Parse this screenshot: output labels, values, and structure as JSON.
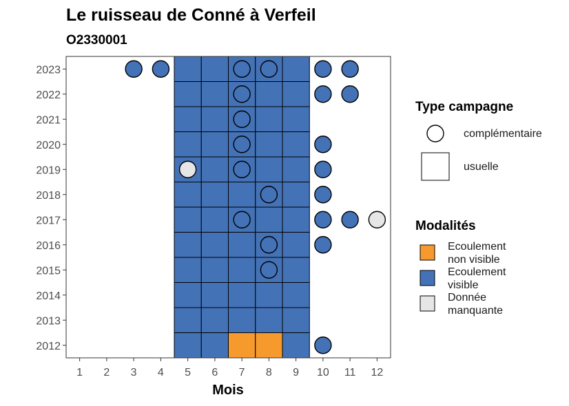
{
  "chart_data": {
    "type": "heatmap",
    "title": "Le ruisseau de Conné à Verfeil",
    "subtitle": "O2330001",
    "xlabel": "Mois",
    "ylabel": "",
    "x_ticks": [
      1,
      2,
      3,
      4,
      5,
      6,
      7,
      8,
      9,
      10,
      11,
      12
    ],
    "y_ticks": [
      2012,
      2013,
      2014,
      2015,
      2016,
      2017,
      2018,
      2019,
      2020,
      2021,
      2022,
      2023
    ],
    "xlim": [
      0.5,
      12.5
    ],
    "ylim": [
      2011.5,
      2023.5
    ],
    "grid": false,
    "modalites": [
      {
        "key": "nv",
        "label_lines": [
          "Ecoulement",
          "non visible"
        ],
        "color": "#F79A2E"
      },
      {
        "key": "v",
        "label_lines": [
          "Ecoulement",
          "visible"
        ],
        "color": "#4472B6"
      },
      {
        "key": "m",
        "label_lines": [
          "Donnée",
          "manquante"
        ],
        "color": "#E6E6E6"
      }
    ],
    "campagne_types": [
      {
        "key": "complementaire",
        "label": "complémentaire",
        "shape": "circle"
      },
      {
        "key": "usuelle",
        "label": "usuelle",
        "shape": "square"
      }
    ],
    "legend": {
      "position": "right",
      "type_title": "Type campagne",
      "modalite_title": "Modalités"
    },
    "observations": [
      {
        "year": 2012,
        "month": 5,
        "type": "usuelle",
        "modalite": "v"
      },
      {
        "year": 2012,
        "month": 6,
        "type": "usuelle",
        "modalite": "v"
      },
      {
        "year": 2012,
        "month": 7,
        "type": "usuelle",
        "modalite": "nv"
      },
      {
        "year": 2012,
        "month": 8,
        "type": "usuelle",
        "modalite": "nv"
      },
      {
        "year": 2012,
        "month": 9,
        "type": "usuelle",
        "modalite": "v"
      },
      {
        "year": 2012,
        "month": 10,
        "type": "complementaire",
        "modalite": "v"
      },
      {
        "year": 2013,
        "month": 5,
        "type": "usuelle",
        "modalite": "v"
      },
      {
        "year": 2013,
        "month": 6,
        "type": "usuelle",
        "modalite": "v"
      },
      {
        "year": 2013,
        "month": 7,
        "type": "usuelle",
        "modalite": "v"
      },
      {
        "year": 2013,
        "month": 8,
        "type": "usuelle",
        "modalite": "v"
      },
      {
        "year": 2013,
        "month": 9,
        "type": "usuelle",
        "modalite": "v"
      },
      {
        "year": 2014,
        "month": 5,
        "type": "usuelle",
        "modalite": "v"
      },
      {
        "year": 2014,
        "month": 6,
        "type": "usuelle",
        "modalite": "v"
      },
      {
        "year": 2014,
        "month": 7,
        "type": "usuelle",
        "modalite": "v"
      },
      {
        "year": 2014,
        "month": 8,
        "type": "usuelle",
        "modalite": "v"
      },
      {
        "year": 2014,
        "month": 9,
        "type": "usuelle",
        "modalite": "v"
      },
      {
        "year": 2015,
        "month": 5,
        "type": "usuelle",
        "modalite": "v"
      },
      {
        "year": 2015,
        "month": 6,
        "type": "usuelle",
        "modalite": "v"
      },
      {
        "year": 2015,
        "month": 7,
        "type": "usuelle",
        "modalite": "v"
      },
      {
        "year": 2015,
        "month": 8,
        "type": "usuelle",
        "modalite": "v"
      },
      {
        "year": 2015,
        "month": 9,
        "type": "usuelle",
        "modalite": "v"
      },
      {
        "year": 2015,
        "month": 8,
        "type": "complementaire",
        "modalite": "v"
      },
      {
        "year": 2016,
        "month": 5,
        "type": "usuelle",
        "modalite": "v"
      },
      {
        "year": 2016,
        "month": 6,
        "type": "usuelle",
        "modalite": "v"
      },
      {
        "year": 2016,
        "month": 7,
        "type": "usuelle",
        "modalite": "v"
      },
      {
        "year": 2016,
        "month": 8,
        "type": "usuelle",
        "modalite": "v"
      },
      {
        "year": 2016,
        "month": 9,
        "type": "usuelle",
        "modalite": "v"
      },
      {
        "year": 2016,
        "month": 8,
        "type": "complementaire",
        "modalite": "v"
      },
      {
        "year": 2016,
        "month": 10,
        "type": "complementaire",
        "modalite": "v"
      },
      {
        "year": 2017,
        "month": 5,
        "type": "usuelle",
        "modalite": "v"
      },
      {
        "year": 2017,
        "month": 6,
        "type": "usuelle",
        "modalite": "v"
      },
      {
        "year": 2017,
        "month": 7,
        "type": "usuelle",
        "modalite": "v"
      },
      {
        "year": 2017,
        "month": 8,
        "type": "usuelle",
        "modalite": "v"
      },
      {
        "year": 2017,
        "month": 9,
        "type": "usuelle",
        "modalite": "v"
      },
      {
        "year": 2017,
        "month": 7,
        "type": "complementaire",
        "modalite": "v"
      },
      {
        "year": 2017,
        "month": 10,
        "type": "complementaire",
        "modalite": "v"
      },
      {
        "year": 2017,
        "month": 11,
        "type": "complementaire",
        "modalite": "v"
      },
      {
        "year": 2017,
        "month": 12,
        "type": "complementaire",
        "modalite": "m"
      },
      {
        "year": 2018,
        "month": 5,
        "type": "usuelle",
        "modalite": "v"
      },
      {
        "year": 2018,
        "month": 6,
        "type": "usuelle",
        "modalite": "v"
      },
      {
        "year": 2018,
        "month": 7,
        "type": "usuelle",
        "modalite": "v"
      },
      {
        "year": 2018,
        "month": 8,
        "type": "usuelle",
        "modalite": "v"
      },
      {
        "year": 2018,
        "month": 9,
        "type": "usuelle",
        "modalite": "v"
      },
      {
        "year": 2018,
        "month": 8,
        "type": "complementaire",
        "modalite": "v"
      },
      {
        "year": 2018,
        "month": 10,
        "type": "complementaire",
        "modalite": "v"
      },
      {
        "year": 2019,
        "month": 5,
        "type": "usuelle",
        "modalite": "v"
      },
      {
        "year": 2019,
        "month": 6,
        "type": "usuelle",
        "modalite": "v"
      },
      {
        "year": 2019,
        "month": 7,
        "type": "usuelle",
        "modalite": "v"
      },
      {
        "year": 2019,
        "month": 8,
        "type": "usuelle",
        "modalite": "v"
      },
      {
        "year": 2019,
        "month": 9,
        "type": "usuelle",
        "modalite": "v"
      },
      {
        "year": 2019,
        "month": 5,
        "type": "complementaire",
        "modalite": "m"
      },
      {
        "year": 2019,
        "month": 7,
        "type": "complementaire",
        "modalite": "v"
      },
      {
        "year": 2019,
        "month": 10,
        "type": "complementaire",
        "modalite": "v"
      },
      {
        "year": 2020,
        "month": 5,
        "type": "usuelle",
        "modalite": "v"
      },
      {
        "year": 2020,
        "month": 6,
        "type": "usuelle",
        "modalite": "v"
      },
      {
        "year": 2020,
        "month": 7,
        "type": "usuelle",
        "modalite": "v"
      },
      {
        "year": 2020,
        "month": 8,
        "type": "usuelle",
        "modalite": "v"
      },
      {
        "year": 2020,
        "month": 9,
        "type": "usuelle",
        "modalite": "v"
      },
      {
        "year": 2020,
        "month": 7,
        "type": "complementaire",
        "modalite": "v"
      },
      {
        "year": 2020,
        "month": 10,
        "type": "complementaire",
        "modalite": "v"
      },
      {
        "year": 2021,
        "month": 5,
        "type": "usuelle",
        "modalite": "v"
      },
      {
        "year": 2021,
        "month": 6,
        "type": "usuelle",
        "modalite": "v"
      },
      {
        "year": 2021,
        "month": 7,
        "type": "usuelle",
        "modalite": "v"
      },
      {
        "year": 2021,
        "month": 8,
        "type": "usuelle",
        "modalite": "v"
      },
      {
        "year": 2021,
        "month": 9,
        "type": "usuelle",
        "modalite": "v"
      },
      {
        "year": 2021,
        "month": 7,
        "type": "complementaire",
        "modalite": "v"
      },
      {
        "year": 2022,
        "month": 5,
        "type": "usuelle",
        "modalite": "v"
      },
      {
        "year": 2022,
        "month": 6,
        "type": "usuelle",
        "modalite": "v"
      },
      {
        "year": 2022,
        "month": 7,
        "type": "usuelle",
        "modalite": "v"
      },
      {
        "year": 2022,
        "month": 8,
        "type": "usuelle",
        "modalite": "v"
      },
      {
        "year": 2022,
        "month": 9,
        "type": "usuelle",
        "modalite": "v"
      },
      {
        "year": 2022,
        "month": 7,
        "type": "complementaire",
        "modalite": "v"
      },
      {
        "year": 2022,
        "month": 10,
        "type": "complementaire",
        "modalite": "v"
      },
      {
        "year": 2022,
        "month": 11,
        "type": "complementaire",
        "modalite": "v"
      },
      {
        "year": 2023,
        "month": 5,
        "type": "usuelle",
        "modalite": "v"
      },
      {
        "year": 2023,
        "month": 6,
        "type": "usuelle",
        "modalite": "v"
      },
      {
        "year": 2023,
        "month": 7,
        "type": "usuelle",
        "modalite": "v"
      },
      {
        "year": 2023,
        "month": 8,
        "type": "usuelle",
        "modalite": "v"
      },
      {
        "year": 2023,
        "month": 9,
        "type": "usuelle",
        "modalite": "v"
      },
      {
        "year": 2023,
        "month": 3,
        "type": "complementaire",
        "modalite": "v"
      },
      {
        "year": 2023,
        "month": 4,
        "type": "complementaire",
        "modalite": "v"
      },
      {
        "year": 2023,
        "month": 7,
        "type": "complementaire",
        "modalite": "v"
      },
      {
        "year": 2023,
        "month": 8,
        "type": "complementaire",
        "modalite": "v"
      },
      {
        "year": 2023,
        "month": 10,
        "type": "complementaire",
        "modalite": "v"
      },
      {
        "year": 2023,
        "month": 11,
        "type": "complementaire",
        "modalite": "v"
      }
    ]
  }
}
